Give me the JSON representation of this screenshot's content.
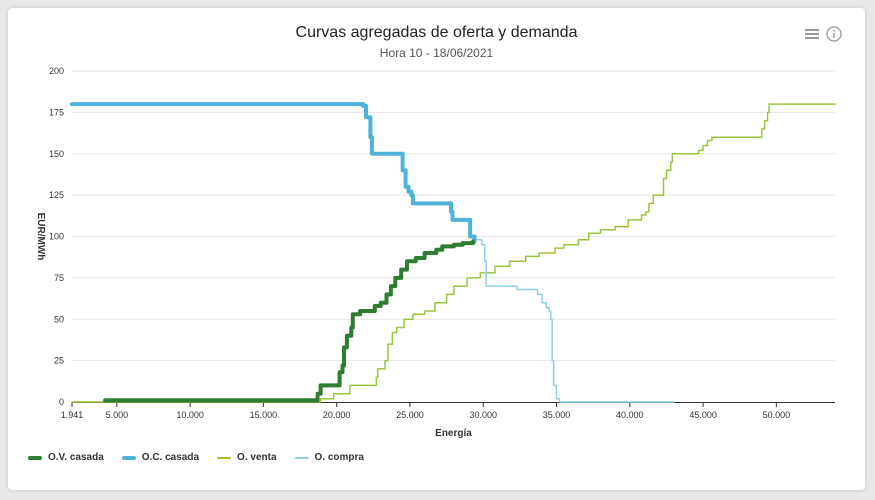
{
  "chart_data": {
    "type": "line",
    "title": "Curvas agregadas de oferta y demanda",
    "subtitle": "Hora 10 - 18/06/2021",
    "xlabel": "Energía",
    "ylabel": "EUR/MWh",
    "xlim": [
      1941,
      54000
    ],
    "ylim": [
      0,
      200
    ],
    "x_ticks": [
      1941,
      5000,
      10000,
      15000,
      20000,
      25000,
      30000,
      35000,
      40000,
      45000,
      50000
    ],
    "x_tick_labels": [
      "1.941",
      "5.000",
      "10.000",
      "15.000",
      "20.000",
      "25.000",
      "30.000",
      "35.000",
      "40.000",
      "45.000",
      "50.000"
    ],
    "y_ticks": [
      0,
      25,
      50,
      75,
      100,
      125,
      150,
      175,
      200
    ],
    "grid": {
      "x": false,
      "y": true
    },
    "legend_position": "bottom-left",
    "series": [
      {
        "name": "O.V. casada",
        "color": "#2e7d32",
        "width": 4,
        "points": [
          [
            4200,
            1
          ],
          [
            18200,
            1
          ],
          [
            18700,
            5
          ],
          [
            18900,
            10
          ],
          [
            20100,
            10
          ],
          [
            20200,
            18
          ],
          [
            20400,
            22
          ],
          [
            20500,
            33
          ],
          [
            20700,
            40
          ],
          [
            21000,
            45
          ],
          [
            21100,
            53
          ],
          [
            21600,
            55
          ],
          [
            22200,
            55
          ],
          [
            22600,
            58
          ],
          [
            23000,
            60
          ],
          [
            23400,
            65
          ],
          [
            23700,
            70
          ],
          [
            24000,
            75
          ],
          [
            24400,
            80
          ],
          [
            24800,
            85
          ],
          [
            25400,
            87
          ],
          [
            26000,
            90
          ],
          [
            26800,
            92
          ],
          [
            27200,
            94
          ],
          [
            28000,
            95
          ],
          [
            28600,
            96
          ],
          [
            29300,
            97
          ]
        ]
      },
      {
        "name": "O.C. casada",
        "color": "#4fb3d9",
        "width": 4,
        "points": [
          [
            1941,
            180
          ],
          [
            21200,
            180
          ],
          [
            21800,
            179
          ],
          [
            22000,
            172
          ],
          [
            22300,
            160
          ],
          [
            22400,
            150
          ],
          [
            24300,
            150
          ],
          [
            24500,
            140
          ],
          [
            24700,
            130
          ],
          [
            24900,
            127
          ],
          [
            25100,
            125
          ],
          [
            25200,
            120
          ],
          [
            27500,
            120
          ],
          [
            27800,
            115
          ],
          [
            27900,
            110
          ],
          [
            29000,
            110
          ],
          [
            29100,
            100
          ],
          [
            29400,
            97
          ]
        ]
      },
      {
        "name": "O. venta",
        "color": "#9bc53d",
        "width": 1.5,
        "points": [
          [
            1941,
            0
          ],
          [
            18300,
            0
          ],
          [
            18900,
            2
          ],
          [
            19800,
            5
          ],
          [
            20900,
            10
          ],
          [
            22400,
            10
          ],
          [
            22700,
            15
          ],
          [
            22800,
            20
          ],
          [
            23300,
            25
          ],
          [
            23500,
            35
          ],
          [
            23800,
            42
          ],
          [
            24100,
            45
          ],
          [
            24600,
            50
          ],
          [
            25200,
            53
          ],
          [
            26000,
            55
          ],
          [
            26700,
            60
          ],
          [
            27500,
            65
          ],
          [
            28000,
            70
          ],
          [
            28900,
            75
          ],
          [
            29800,
            78
          ],
          [
            30800,
            82
          ],
          [
            31800,
            85
          ],
          [
            32900,
            88
          ],
          [
            33800,
            90
          ],
          [
            34900,
            93
          ],
          [
            35500,
            95
          ],
          [
            36500,
            98
          ],
          [
            37200,
            102
          ],
          [
            38000,
            104
          ],
          [
            39000,
            106
          ],
          [
            39900,
            110
          ],
          [
            40800,
            113
          ],
          [
            41100,
            115
          ],
          [
            41300,
            120
          ],
          [
            41600,
            125
          ],
          [
            42300,
            135
          ],
          [
            42500,
            140
          ],
          [
            42800,
            145
          ],
          [
            42900,
            150
          ],
          [
            44700,
            152
          ],
          [
            45000,
            155
          ],
          [
            45300,
            158
          ],
          [
            45600,
            160
          ],
          [
            48900,
            160
          ],
          [
            49000,
            165
          ],
          [
            49200,
            170
          ],
          [
            49400,
            175
          ],
          [
            49500,
            180
          ],
          [
            54000,
            180
          ]
        ]
      },
      {
        "name": "O. compra",
        "color": "#8fd0ea",
        "width": 1.5,
        "points": [
          [
            1941,
            180
          ],
          [
            21200,
            180
          ],
          [
            21800,
            178
          ],
          [
            22000,
            172
          ],
          [
            22300,
            160
          ],
          [
            22400,
            150
          ],
          [
            24300,
            150
          ],
          [
            24500,
            140
          ],
          [
            24700,
            130
          ],
          [
            24900,
            127
          ],
          [
            25100,
            125
          ],
          [
            25200,
            120
          ],
          [
            27500,
            120
          ],
          [
            27800,
            115
          ],
          [
            27900,
            110
          ],
          [
            29000,
            110
          ],
          [
            29100,
            100
          ],
          [
            29500,
            98
          ],
          [
            29900,
            95
          ],
          [
            30100,
            85
          ],
          [
            30200,
            70
          ],
          [
            31500,
            70
          ],
          [
            32300,
            68
          ],
          [
            33500,
            68
          ],
          [
            33700,
            65
          ],
          [
            34000,
            60
          ],
          [
            34300,
            57
          ],
          [
            34500,
            55
          ],
          [
            34600,
            50
          ],
          [
            34700,
            25
          ],
          [
            34800,
            10
          ],
          [
            35000,
            2
          ],
          [
            35200,
            0
          ],
          [
            43000,
            0
          ]
        ]
      }
    ]
  }
}
